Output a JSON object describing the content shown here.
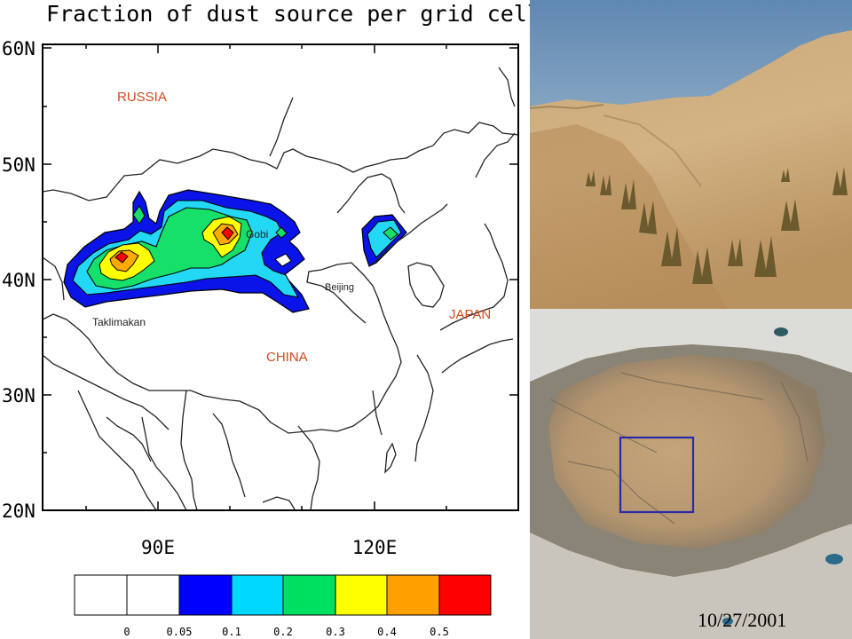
{
  "figure": {
    "title": "Fraction of dust source per grid cell",
    "lat_ticks": [
      "60N",
      "50N",
      "40N",
      "30N",
      "20N"
    ],
    "lon_ticks": [
      "90E",
      "120E"
    ]
  },
  "labels": {
    "russia": "RUSSIA",
    "china": "CHINA",
    "japan": "JAPAN",
    "gobi": "Gobi",
    "taklimakan": "Taklimakan",
    "beijing": "Beijing"
  },
  "colorbar": {
    "ticks": [
      "0",
      "0.05",
      "0.1",
      "0.2",
      "0.3",
      "0.4",
      "0.5"
    ],
    "colors": [
      "#ffffff",
      "#ffffff",
      "#0000ff",
      "#00d8ff",
      "#00e060",
      "#ffff00",
      "#ffa000",
      "#ff0000"
    ]
  },
  "photo": {
    "date": "10/27/2001"
  },
  "colors": {
    "blue": "#0a14e8",
    "cyan": "#22d8f5",
    "green": "#16e06a",
    "yellow": "#ffff00",
    "orange": "#ffaa00",
    "red": "#ff0000",
    "label_red": "#d24a1e",
    "box_outline": "#2a2aa8"
  }
}
